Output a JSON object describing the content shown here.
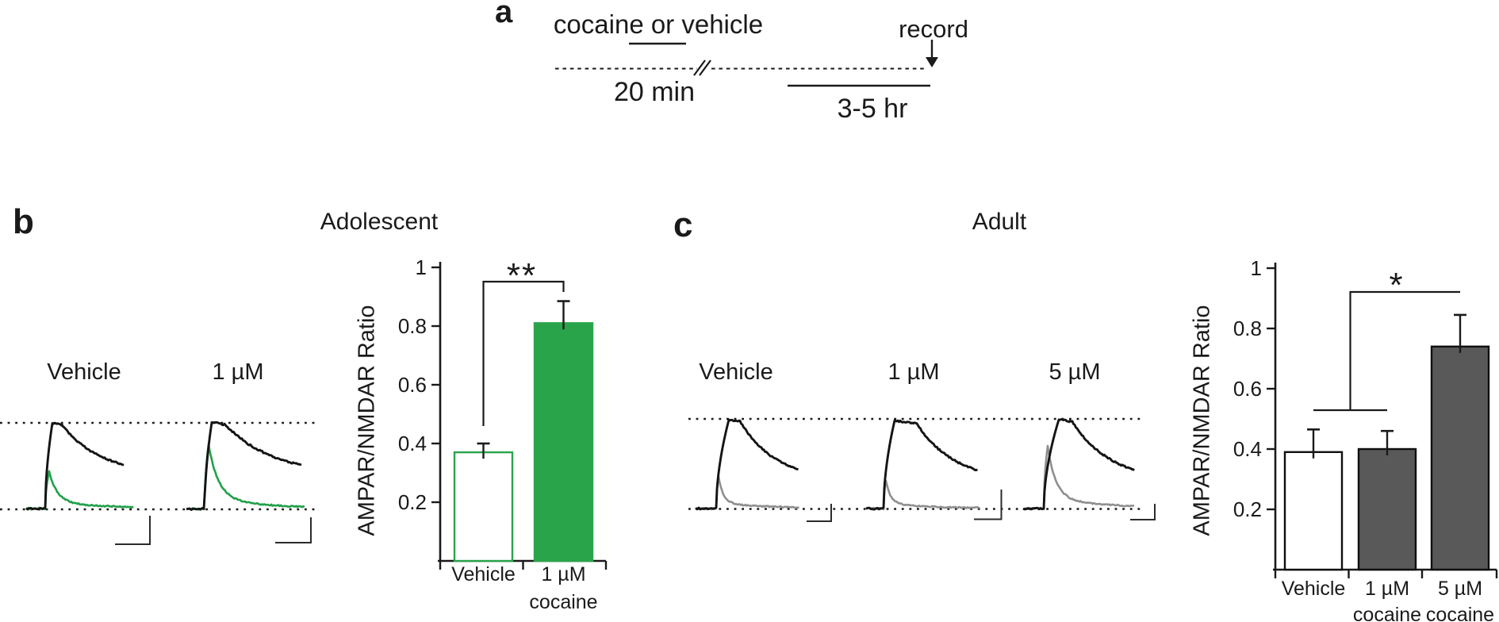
{
  "page": {
    "background": "#ffffff"
  },
  "panel_a": {
    "label": "a",
    "treatment_label": "cocaine or vehicle",
    "record_label": "record",
    "interval_short": "20 min",
    "interval_long": "3-5 hr"
  },
  "panel_b": {
    "label": "b",
    "title": "Adolescent",
    "trace_labels": [
      "Vehicle",
      "1 µM"
    ],
    "trace_colors": {
      "nmdar_trace": "#141414",
      "ampar_trace": "#22a04a"
    },
    "significance_label": "**"
  },
  "panel_c": {
    "label": "c",
    "title": "Adult",
    "trace_labels": [
      "Vehicle",
      "1 µM",
      "5 µM"
    ],
    "trace_colors": {
      "nmdar_trace": "#141414",
      "ampar_trace": "#8f8f8f"
    },
    "significance_label": "*"
  },
  "chart_data": [
    {
      "type": "bar",
      "panel": "b",
      "title": "Adolescent",
      "xlabel": "",
      "ylabel": "AMPAR/NMDAR Ratio",
      "ylim": [
        0,
        1
      ],
      "yticks": [
        "0.2",
        "0.4",
        "0.6",
        "0.8",
        "1"
      ],
      "grid": false,
      "legend_position": "none",
      "categories": [
        "Vehicle",
        "1 µM cocaine"
      ],
      "category_lines": [
        [
          "Vehicle"
        ],
        [
          "1 µM",
          "cocaine"
        ]
      ],
      "values": [
        0.37,
        0.81
      ],
      "errors": [
        0.03,
        0.075
      ],
      "bar_fills": [
        "#ffffff",
        "#2aa44b"
      ],
      "bar_strokes": [
        "#2aa44b",
        "#2aa44b"
      ],
      "significance": "**",
      "significance_pair": "Vehicle vs 1 µM cocaine"
    },
    {
      "type": "bar",
      "panel": "c",
      "title": "Adult",
      "xlabel": "",
      "ylabel": "AMPAR/NMDAR Ratio",
      "ylim": [
        0,
        1
      ],
      "yticks": [
        "0.2",
        "0.4",
        "0.6",
        "0.8",
        "1"
      ],
      "grid": false,
      "legend_position": "none",
      "categories": [
        "Vehicle",
        "1 µM cocaine",
        "5 µM cocaine"
      ],
      "category_lines": [
        [
          "Vehicle"
        ],
        [
          "1 µM",
          "cocaine"
        ],
        [
          "5 µM",
          "cocaine"
        ]
      ],
      "values": [
        0.39,
        0.4,
        0.74
      ],
      "errors": [
        0.075,
        0.06,
        0.105
      ],
      "bar_fills": [
        "#ffffff",
        "#595959",
        "#595959"
      ],
      "bar_strokes": [
        "#0f0f0f",
        "#0f0f0f",
        "#0f0f0f"
      ],
      "significance": "*",
      "significance_pair": "Vehicle and 1 µM cocaine vs 5 µM cocaine"
    }
  ]
}
